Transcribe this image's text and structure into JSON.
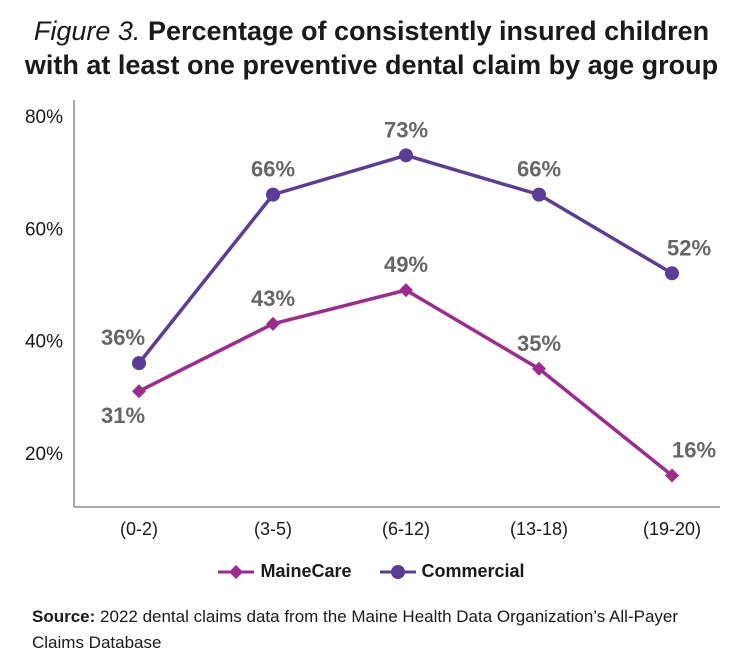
{
  "title": {
    "figure_label": "Figure 3.",
    "line1": "Percentage of consistently insured children",
    "line2": "with at least one preventive dental claim by age group"
  },
  "colors": {
    "mainecare": "#9e2a8f",
    "commercial": "#5b3c99",
    "axis": "#555555",
    "label": "#666666"
  },
  "chart_data": {
    "type": "line",
    "categories": [
      "(0-2)",
      "(3-5)",
      "(6-12)",
      "(13-18)",
      "(19-20)"
    ],
    "series": [
      {
        "name": "MaineCare",
        "marker": "diamond",
        "values": [
          31,
          43,
          49,
          35,
          16
        ],
        "labels": [
          "31%",
          "43%",
          "49%",
          "35%",
          "16%"
        ]
      },
      {
        "name": "Commercial",
        "marker": "circle",
        "values": [
          36,
          66,
          73,
          66,
          52
        ],
        "labels": [
          "36%",
          "66%",
          "73%",
          "66%",
          "52%"
        ]
      }
    ],
    "yticks": [
      "20%",
      "40%",
      "60%",
      "80%"
    ],
    "ytick_values": [
      20,
      40,
      60,
      80
    ],
    "ylim": [
      20,
      80
    ],
    "grid": false,
    "legend_position": "bottom"
  },
  "legend": {
    "mainecare_label": "MaineCare",
    "commercial_label": "Commercial"
  },
  "source": {
    "label": "Source:",
    "text": "2022 dental claims data from the Maine Health Data Organization’s All-Payer Claims Database"
  }
}
